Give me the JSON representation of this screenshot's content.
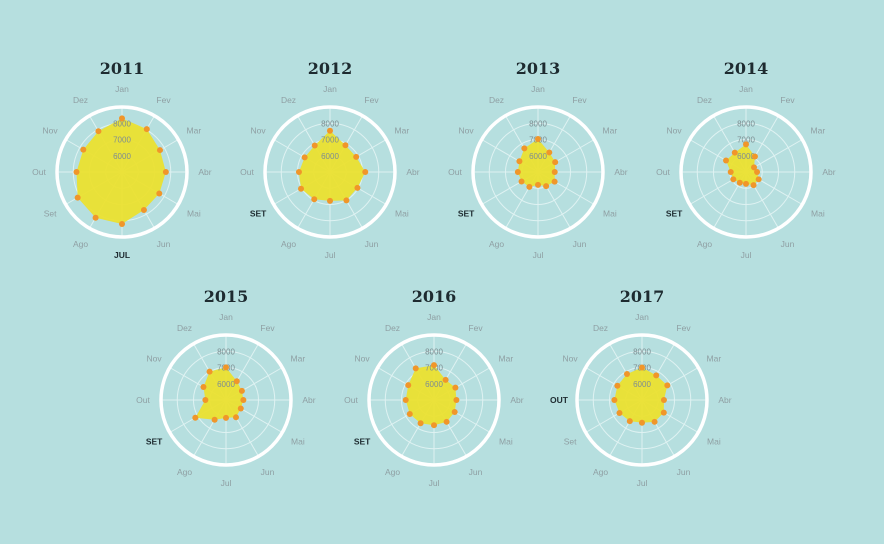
{
  "chart_data": {
    "type": "radar",
    "months": [
      "Jan",
      "Fev",
      "Mar",
      "Abr",
      "Mai",
      "Jun",
      "Jul",
      "Ago",
      "Set",
      "Out",
      "Nov",
      "Dez"
    ],
    "radial_ticks": [
      6000,
      7000,
      8000
    ],
    "radial_range": [
      5000,
      9000
    ],
    "grid": true,
    "colors": {
      "fill": "#ebe02f",
      "point": "#f0962a",
      "ring": "#ffffff",
      "grid": "#dff2f2",
      "background": "#b6dfdf"
    },
    "charts": [
      {
        "title": "2011",
        "highlight_month": "JUL",
        "highlight_index": 6,
        "values": [
          8300,
          8050,
          7700,
          7700,
          7650,
          7700,
          8200,
          8250,
          8150,
          7800,
          7750,
          7900
        ]
      },
      {
        "title": "2012",
        "highlight_month": "SET",
        "highlight_index": 8,
        "values": [
          7540,
          6900,
          6860,
          7170,
          6950,
          7020,
          6780,
          6940,
          7060,
          6910,
          6800,
          6880
        ]
      },
      {
        "title": "2013",
        "highlight_month": "SET",
        "highlight_index": 8,
        "values": [
          7030,
          6390,
          6220,
          6030,
          6180,
          6000,
          5790,
          6060,
          6170,
          6240,
          6320,
          6680
        ]
      },
      {
        "title": "2014",
        "highlight_month": "SET",
        "highlight_index": 8,
        "values": [
          6700,
          6100,
          5570,
          5680,
          5900,
          5930,
          5730,
          5760,
          5900,
          5940,
          6420,
          6380
        ]
      },
      {
        "title": "2015",
        "highlight_month": "SET",
        "highlight_index": 8,
        "values": [
          7010,
          6330,
          6130,
          6070,
          6050,
          6230,
          6100,
          6400,
          7180,
          6270,
          6600,
          7020
        ]
      },
      {
        "title": "2016",
        "highlight_month": "SET",
        "highlight_index": 8,
        "values": [
          7150,
          6430,
          6520,
          6380,
          6470,
          6550,
          6550,
          6650,
          6720,
          6740,
          6830,
          7250
        ]
      },
      {
        "title": "2017",
        "highlight_month": "OUT",
        "highlight_index": 9,
        "values": [
          7000,
          6750,
          6800,
          6350,
          6550,
          6550,
          6400,
          6500,
          6600,
          6700,
          6750,
          6850
        ]
      }
    ]
  }
}
